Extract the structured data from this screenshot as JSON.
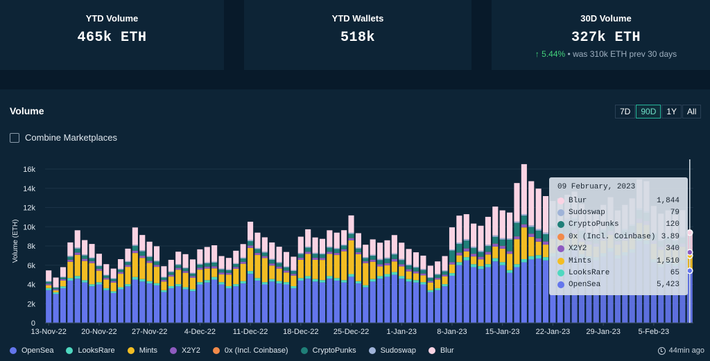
{
  "stats": {
    "ytd_volume": {
      "label": "YTD Volume",
      "value": "465k ETH"
    },
    "ytd_wallets": {
      "label": "YTD Wallets",
      "value": "518k"
    },
    "volume_30d": {
      "label": "30D Volume",
      "value": "327k ETH",
      "change": "5.44%",
      "note": "• was 310k ETH prev 30 days"
    }
  },
  "panel": {
    "title": "Volume",
    "ranges": [
      "7D",
      "90D",
      "1Y",
      "All"
    ],
    "active_range": "90D",
    "combine_label": "Combine Marketplaces",
    "updated": "44min ago"
  },
  "colors": {
    "OpenSea": "#6476ec",
    "LooksRare": "#4fd8c0",
    "Mints": "#f3bd23",
    "X2Y2": "#8e5bc0",
    "0x (Incl. Coinbase)": "#f28a4a",
    "CryptoPunks": "#1f7f78",
    "Sudoswap": "#9fb3d8",
    "Blur": "#fbd4e4"
  },
  "tooltip": {
    "date": "09 February, 2023",
    "rows": [
      {
        "name": "Blur",
        "value": "1,844"
      },
      {
        "name": "Sudoswap",
        "value": "79"
      },
      {
        "name": "CryptoPunks",
        "value": "120"
      },
      {
        "name": "0x (Incl. Coinbase)",
        "value": "3.89"
      },
      {
        "name": "X2Y2",
        "value": "340"
      },
      {
        "name": "Mints",
        "value": "1,510"
      },
      {
        "name": "LooksRare",
        "value": "65"
      },
      {
        "name": "OpenSea",
        "value": "5,423"
      }
    ]
  },
  "chart_data": {
    "type": "bar",
    "stacked": true,
    "ylabel": "Volume (ETH)",
    "ylim": [
      0,
      17000
    ],
    "yticks": [
      0,
      2000,
      4000,
      6000,
      8000,
      10000,
      12000,
      14000,
      16000
    ],
    "ytick_labels": [
      "0",
      "2k",
      "4k",
      "6k",
      "8k",
      "10k",
      "12k",
      "14k",
      "16k"
    ],
    "x_tick_labels": [
      "13-Nov-22",
      "20-Nov-22",
      "27-Nov-22",
      "4-Dec-22",
      "11-Dec-22",
      "18-Dec-22",
      "25-Dec-22",
      "1-Jan-23",
      "8-Jan-23",
      "15-Jan-23",
      "22-Jan-23",
      "29-Jan-23",
      "5-Feb-23"
    ],
    "x_tick_day_index": [
      0,
      7,
      14,
      21,
      28,
      35,
      42,
      49,
      56,
      63,
      70,
      77,
      84
    ],
    "first_day": "13-Nov-22",
    "last_day": "09-Feb-23",
    "series_order": [
      "OpenSea",
      "LooksRare",
      "Mints",
      "X2Y2",
      "0x (Incl. Coinbase)",
      "CryptoPunks",
      "Sudoswap",
      "Blur"
    ],
    "series": [
      {
        "name": "OpenSea",
        "values": [
          3400,
          3000,
          3600,
          4400,
          4600,
          4200,
          3800,
          4000,
          3400,
          3100,
          3500,
          3800,
          4500,
          4300,
          4100,
          3900,
          3200,
          3600,
          3800,
          3500,
          3300,
          4000,
          4200,
          4500,
          4000,
          3600,
          3800,
          4100,
          5100,
          4400,
          4000,
          4300,
          4100,
          4000,
          3600,
          4400,
          4600,
          4300,
          4200,
          4600,
          4400,
          4200,
          4800,
          4100,
          3700,
          4300,
          4600,
          4800,
          5000,
          4600,
          4300,
          4200,
          4000,
          3200,
          3400,
          3800,
          4900,
          6000,
          6500,
          5800,
          5600,
          5800,
          6400,
          6000,
          5200,
          5800,
          6300,
          6600,
          6700,
          6500,
          6900,
          7200,
          7300,
          7600,
          6800,
          6600,
          6500,
          6900,
          7400,
          6700,
          7000,
          7300,
          8500,
          8200,
          6300,
          5800,
          6100,
          5900,
          6200,
          5423
        ]
      },
      {
        "name": "LooksRare",
        "values": [
          220,
          180,
          200,
          260,
          280,
          240,
          220,
          230,
          210,
          190,
          210,
          230,
          270,
          260,
          240,
          230,
          200,
          220,
          230,
          210,
          200,
          240,
          250,
          270,
          240,
          220,
          230,
          250,
          300,
          260,
          240,
          260,
          250,
          240,
          220,
          260,
          270,
          260,
          250,
          270,
          260,
          250,
          280,
          240,
          220,
          260,
          270,
          280,
          290,
          270,
          260,
          250,
          240,
          200,
          210,
          230,
          280,
          320,
          340,
          310,
          300,
          310,
          330,
          320,
          290,
          310,
          330,
          340,
          350,
          340,
          350,
          360,
          370,
          380,
          350,
          340,
          330,
          350,
          370,
          340,
          350,
          360,
          400,
          390,
          320,
          300,
          310,
          300,
          320,
          65
        ]
      },
      {
        "name": "Mints",
        "values": [
          300,
          200,
          600,
          1700,
          2200,
          2000,
          2200,
          1200,
          900,
          900,
          1400,
          1800,
          2500,
          2200,
          1900,
          1700,
          900,
          1000,
          1500,
          1500,
          1200,
          1300,
          1200,
          900,
          800,
          1200,
          1600,
          1800,
          2400,
          2400,
          2500,
          1400,
          1300,
          1000,
          1100,
          1900,
          2300,
          2000,
          2100,
          2300,
          2400,
          3000,
          3500,
          2800,
          2300,
          1800,
          1000,
          900,
          1100,
          1000,
          800,
          700,
          700,
          800,
          900,
          800,
          900,
          700,
          600,
          800,
          700,
          1000,
          1200,
          1400,
          1700,
          2600,
          3300,
          2000,
          1400,
          1300,
          1500,
          1200,
          1200,
          1300,
          1300,
          1200,
          1100,
          1300,
          1400,
          1100,
          1200,
          1300,
          1500,
          1600,
          1600,
          1500,
          1500,
          1400,
          1400,
          1510
        ]
      },
      {
        "name": "X2Y2",
        "values": [
          150,
          120,
          140,
          200,
          230,
          210,
          190,
          180,
          160,
          150,
          170,
          190,
          230,
          220,
          200,
          190,
          160,
          170,
          180,
          170,
          160,
          190,
          200,
          210,
          190,
          170,
          180,
          200,
          240,
          210,
          200,
          210,
          200,
          190,
          170,
          210,
          220,
          210,
          200,
          220,
          210,
          200,
          230,
          200,
          180,
          210,
          220,
          230,
          240,
          220,
          210,
          200,
          190,
          160,
          170,
          180,
          230,
          280,
          300,
          270,
          260,
          270,
          300,
          280,
          250,
          280,
          310,
          320,
          330,
          320,
          340,
          350,
          360,
          370,
          330,
          320,
          310,
          340,
          360,
          330,
          340,
          350,
          410,
          390,
          320,
          300,
          310,
          300,
          320,
          340
        ]
      },
      {
        "name": "0x (Incl. Coinbase)",
        "values": [
          10,
          8,
          9,
          12,
          14,
          12,
          11,
          11,
          10,
          9,
          10,
          11,
          14,
          13,
          12,
          11,
          9,
          10,
          11,
          10,
          9,
          11,
          12,
          13,
          11,
          10,
          11,
          12,
          15,
          13,
          12,
          13,
          12,
          11,
          10,
          13,
          14,
          13,
          12,
          14,
          13,
          12,
          15,
          12,
          11,
          13,
          14,
          15,
          15,
          14,
          13,
          12,
          11,
          9,
          10,
          11,
          14,
          17,
          18,
          16,
          16,
          17,
          18,
          17,
          15,
          17,
          18,
          19,
          20,
          19,
          20,
          21,
          21,
          22,
          20,
          19,
          19,
          20,
          21,
          19,
          20,
          21,
          23,
          22,
          18,
          16,
          17,
          16,
          17,
          4
        ]
      },
      {
        "name": "CryptoPunks",
        "values": [
          200,
          150,
          180,
          300,
          400,
          350,
          300,
          280,
          250,
          230,
          260,
          300,
          500,
          450,
          400,
          350,
          250,
          280,
          300,
          280,
          260,
          320,
          340,
          380,
          320,
          280,
          300,
          340,
          450,
          400,
          350,
          380,
          360,
          340,
          300,
          380,
          420,
          400,
          380,
          420,
          400,
          380,
          440,
          380,
          330,
          400,
          430,
          450,
          470,
          430,
          400,
          380,
          360,
          300,
          320,
          340,
          1200,
          900,
          800,
          600,
          500,
          600,
          700,
          650,
          1200,
          1400,
          900,
          700,
          800,
          750,
          800,
          850,
          1400,
          1100,
          800,
          700,
          650,
          700,
          750,
          650,
          700,
          750,
          900,
          850,
          650,
          600,
          620,
          600,
          620,
          120
        ]
      },
      {
        "name": "Sudoswap",
        "values": [
          80,
          60,
          70,
          100,
          110,
          100,
          90,
          90,
          80,
          70,
          80,
          90,
          110,
          100,
          95,
          90,
          75,
          80,
          85,
          80,
          75,
          90,
          95,
          100,
          90,
          80,
          85,
          95,
          120,
          105,
          100,
          105,
          100,
          95,
          85,
          105,
          110,
          105,
          100,
          110,
          105,
          100,
          115,
          100,
          90,
          105,
          110,
          115,
          120,
          110,
          105,
          100,
          95,
          80,
          85,
          90,
          115,
          140,
          150,
          135,
          130,
          135,
          150,
          140,
          125,
          140,
          155,
          160,
          165,
          160,
          170,
          175,
          180,
          185,
          165,
          160,
          155,
          165,
          175,
          160,
          165,
          170,
          200,
          190,
          155,
          145,
          150,
          145,
          150,
          79
        ]
      },
      {
        "name": "Blur",
        "values": [
          1100,
          1000,
          1000,
          1400,
          1800,
          1500,
          1400,
          1200,
          1100,
          1000,
          1000,
          1300,
          1800,
          1600,
          1500,
          1500,
          1100,
          1200,
          1300,
          1400,
          1400,
          1500,
          1600,
          1700,
          1300,
          1200,
          1300,
          1400,
          1900,
          1600,
          1500,
          1700,
          1600,
          1500,
          1400,
          1700,
          1800,
          1600,
          1500,
          1700,
          1600,
          1500,
          1800,
          1500,
          1300,
          1600,
          1700,
          1800,
          1900,
          1700,
          1600,
          1500,
          1400,
          1200,
          1300,
          1500,
          2300,
          2800,
          2600,
          2400,
          2600,
          2900,
          3000,
          2900,
          2700,
          4000,
          5200,
          4600,
          4200,
          3800,
          2600,
          2800,
          2500,
          2700,
          2600,
          2300,
          2400,
          2500,
          2600,
          2400,
          2500,
          2700,
          3000,
          3100,
          2800,
          2700,
          2700,
          2600,
          2700,
          1844
        ]
      }
    ]
  }
}
